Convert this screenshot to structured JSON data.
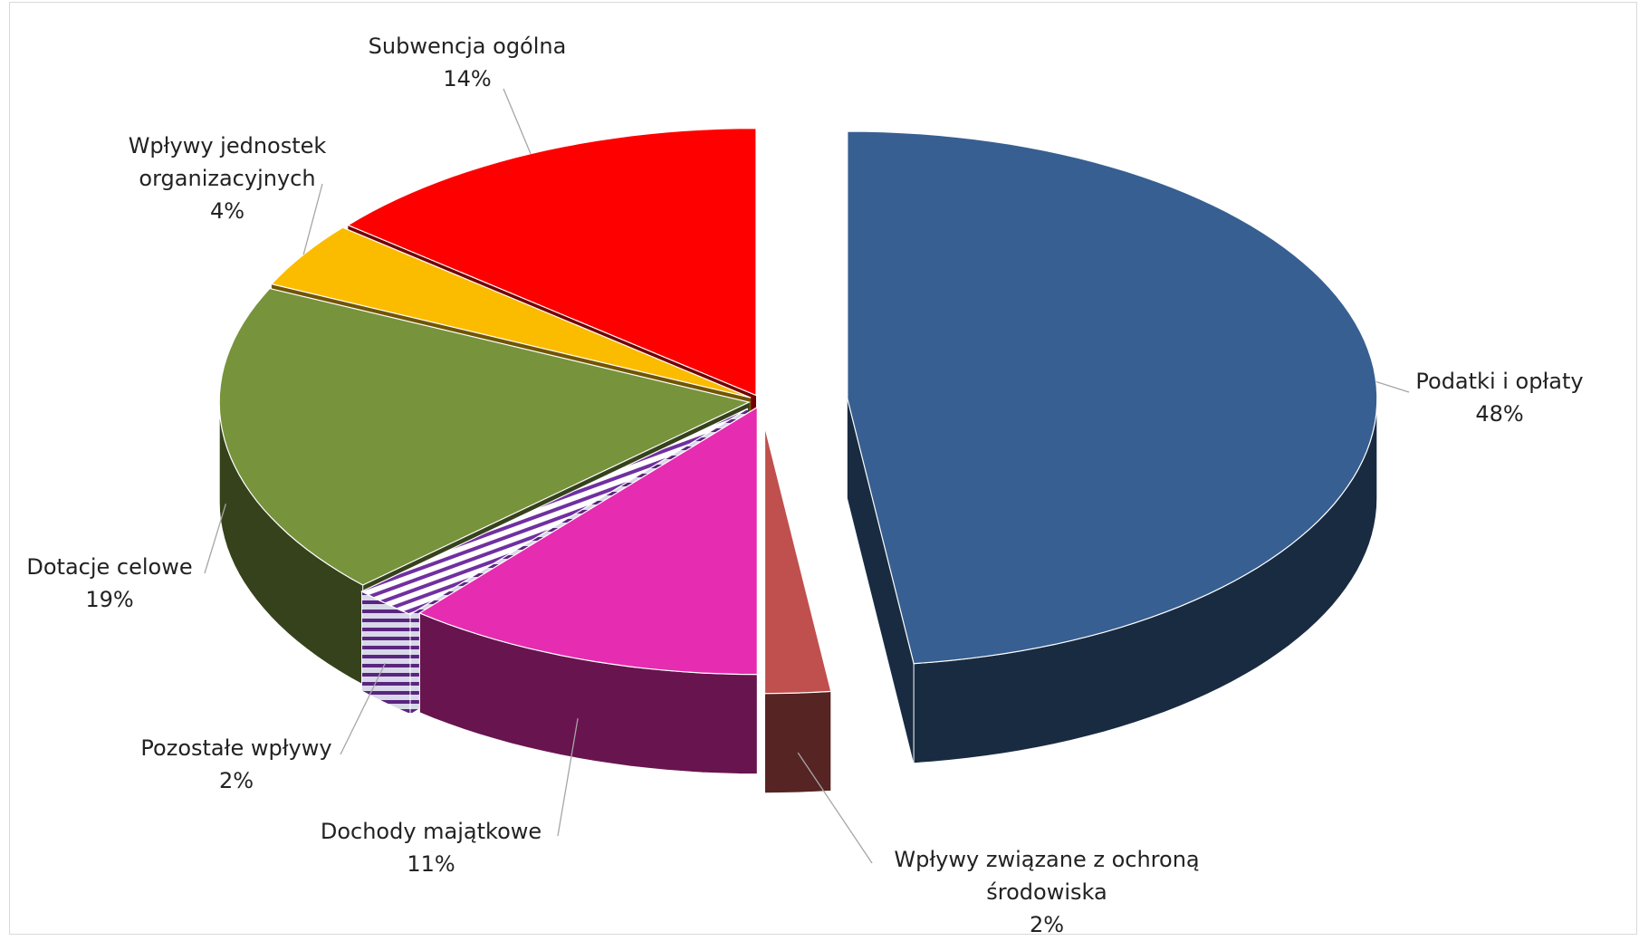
{
  "chart_data": {
    "type": "pie3d",
    "categories": [
      "Podatki i opłaty",
      "Wpływy związane z ochroną środowiska",
      "Dochody majątkowe",
      "Pozostałe wpływy",
      "Dotacje celowe",
      "Wpływy jednostek organizacyjnych",
      "Subwencja ogólna"
    ],
    "values": [
      48,
      2,
      11,
      2,
      19,
      4,
      14
    ],
    "value_labels": [
      "48%",
      "2%",
      "11%",
      "2%",
      "19%",
      "4%",
      "14%"
    ],
    "colors": [
      "#375f91",
      "#c0504d",
      "#e62cb0",
      "#7030a0",
      "#77933c",
      "#fbbc00",
      "#ff0000"
    ],
    "hatch": [
      false,
      false,
      false,
      true,
      false,
      false,
      false
    ]
  }
}
